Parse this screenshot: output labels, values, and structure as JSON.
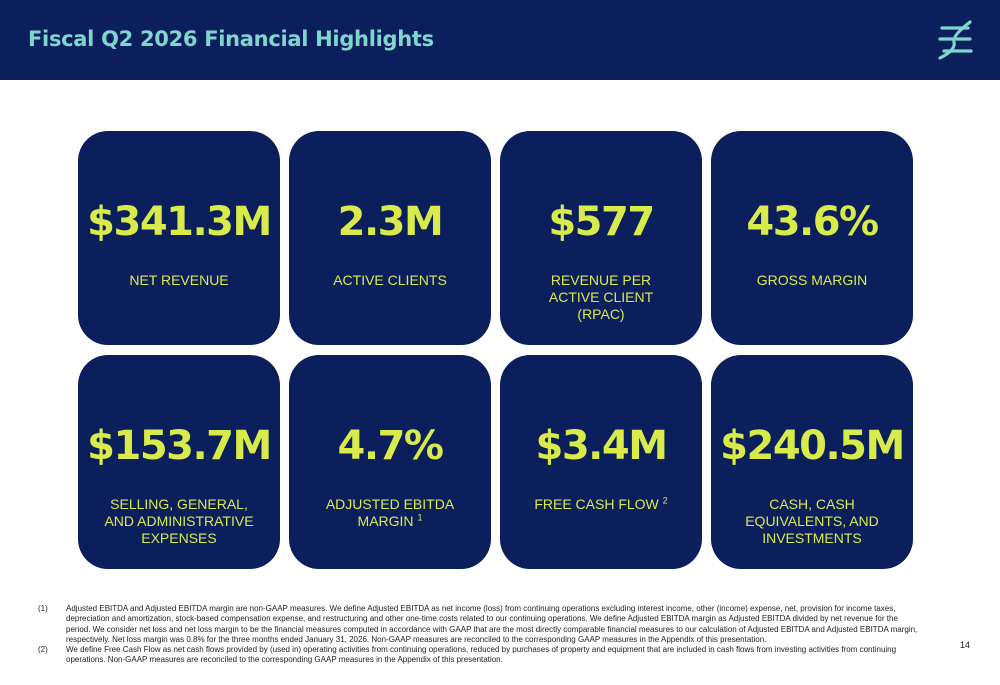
{
  "header": {
    "title": "Fiscal Q2 2026 Financial Highlights",
    "logo_icon": "brand-logo-icon",
    "background": "#0a1f5c",
    "title_color": "#7fd6cf"
  },
  "cards": [
    {
      "value": "$341.3M",
      "label": "NET REVENUE",
      "sup": ""
    },
    {
      "value": "2.3M",
      "label": "ACTIVE CLIENTS",
      "sup": ""
    },
    {
      "value": "$577",
      "label": "REVENUE PER ACTIVE CLIENT (RPAC)",
      "sup": ""
    },
    {
      "value": "43.6%",
      "label": "GROSS MARGIN",
      "sup": ""
    },
    {
      "value": "$153.7M",
      "label": "SELLING, GENERAL, AND ADMINISTRATIVE EXPENSES",
      "sup": ""
    },
    {
      "value": "4.7%",
      "label": "ADJUSTED EBITDA MARGIN",
      "sup": "1"
    },
    {
      "value": "$3.4M",
      "label": "FREE CASH FLOW",
      "sup": "2"
    },
    {
      "value": "$240.5M",
      "label": "CASH, CASH EQUIVALENTS, AND INVESTMENTS",
      "sup": ""
    }
  ],
  "accent_color": "#d9eb4a",
  "footnotes": [
    {
      "num": "(1)",
      "text": "Adjusted EBITDA and Adjusted EBITDA margin are non-GAAP measures. We define Adjusted EBITDA as net income (loss) from continuing operations excluding interest income, other (income) expense, net, provision for income taxes, depreciation and amortization, stock-based compensation expense, and restructuring and other one-time costs related to our continuing operations. We define Adjusted EBITDA margin as Adjusted EBITDA divided by net revenue for the period. We consider net loss and net loss margin to be the financial measures computed in accordance with GAAP that are the most directly comparable financial measures to our calculation of Adjusted EBITDA and Adjusted EBITDA margin, respectively. Net loss margin was 0.8% for the three months ended January 31, 2026. Non-GAAP measures are reconciled to the corresponding GAAP measures in the Appendix of this presentation."
    },
    {
      "num": "(2)",
      "text": "We define Free Cash Flow as net cash flows provided by (used in) operating activities from continuing operations, reduced by purchases of property and equipment that are included in cash flows from investing activities from continuing operations. Non-GAAP measures are reconciled to the corresponding GAAP measures in the Appendix of this presentation."
    }
  ],
  "page_number": "14"
}
